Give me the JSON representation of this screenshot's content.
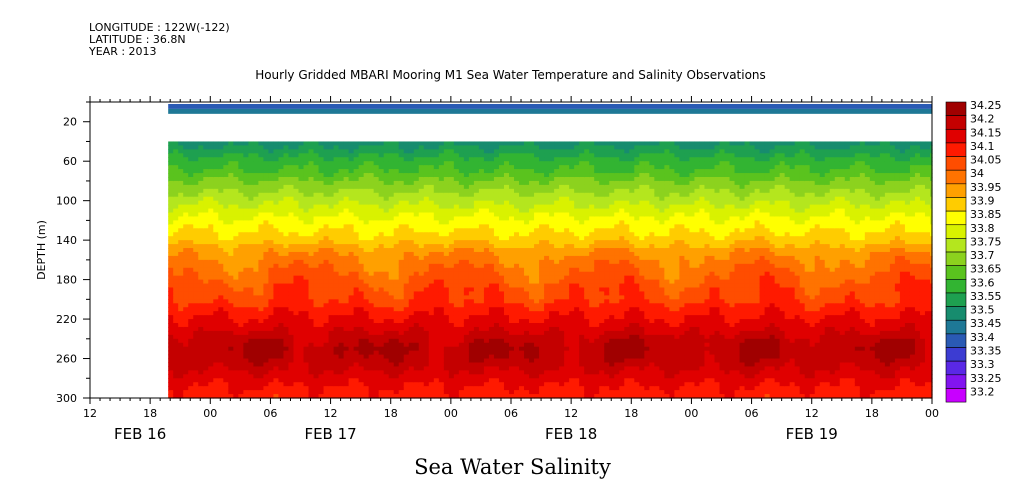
{
  "header": {
    "longitude": "LONGITUDE : 122W(-122)",
    "latitude": "LATITUDE : 36.8N",
    "year": "YEAR : 2013"
  },
  "title": "Hourly Gridded MBARI Mooring M1 Sea Water Temperature and Salinity Observations",
  "bottom_title": "Sea Water Salinity",
  "chart_data": {
    "type": "heatmap",
    "ylabel": "DEPTH (m)",
    "xlabel": "",
    "y_reversed": true,
    "ylim": [
      300,
      0
    ],
    "y_ticks": [
      20,
      60,
      100,
      140,
      180,
      220,
      260,
      300
    ],
    "x_unit": "hours since FEB 16 00:00",
    "xlim": [
      12,
      96
    ],
    "x_ticks": [
      {
        "x": 12,
        "label": "12"
      },
      {
        "x": 18,
        "label": "18"
      },
      {
        "x": 24,
        "label": "00"
      },
      {
        "x": 30,
        "label": "06"
      },
      {
        "x": 36,
        "label": "12"
      },
      {
        "x": 42,
        "label": "18"
      },
      {
        "x": 48,
        "label": "00"
      },
      {
        "x": 54,
        "label": "06"
      },
      {
        "x": 60,
        "label": "12"
      },
      {
        "x": 66,
        "label": "18"
      },
      {
        "x": 72,
        "label": "00"
      },
      {
        "x": 78,
        "label": "06"
      },
      {
        "x": 84,
        "label": "12"
      },
      {
        "x": 90,
        "label": "18"
      },
      {
        "x": 96,
        "label": "00"
      }
    ],
    "date_labels": [
      {
        "x": 17,
        "label": "FEB 16"
      },
      {
        "x": 36,
        "label": "FEB 17"
      },
      {
        "x": 60,
        "label": "FEB 18"
      },
      {
        "x": 84,
        "label": "FEB 19"
      }
    ],
    "data_start_hour": 19.8,
    "surface_band": [
      {
        "depth_from": 2,
        "depth_to": 7,
        "value": 33.4
      },
      {
        "depth_from": 7,
        "depth_to": 12,
        "value": 33.45
      }
    ],
    "profile_depths": [
      40,
      50,
      60,
      70,
      80,
      90,
      100,
      110,
      120,
      130,
      140,
      150,
      160,
      170,
      180,
      190,
      200,
      210,
      220,
      230,
      240,
      250,
      260,
      270,
      280,
      290,
      300
    ],
    "profile_values": [
      33.5,
      33.55,
      33.6,
      33.63,
      33.68,
      33.72,
      33.76,
      33.8,
      33.84,
      33.87,
      33.9,
      33.95,
      33.98,
      34.0,
      34.02,
      34.05,
      34.06,
      34.1,
      34.13,
      34.16,
      34.2,
      34.22,
      34.21,
      34.18,
      34.15,
      34.12,
      34.1
    ],
    "color_levels": [
      {
        "value": 34.25,
        "color": "#a00000"
      },
      {
        "value": 34.2,
        "color": "#c40000"
      },
      {
        "value": 34.15,
        "color": "#e00000"
      },
      {
        "value": 34.1,
        "color": "#ff1a00"
      },
      {
        "value": 34.05,
        "color": "#ff4d00"
      },
      {
        "value": 34.0,
        "color": "#ff7300"
      },
      {
        "value": 33.95,
        "color": "#ffa000"
      },
      {
        "value": 33.9,
        "color": "#ffcc00"
      },
      {
        "value": 33.85,
        "color": "#ffff00"
      },
      {
        "value": 33.8,
        "color": "#d9f200"
      },
      {
        "value": 33.75,
        "color": "#b4e61e"
      },
      {
        "value": 33.7,
        "color": "#8cd21e"
      },
      {
        "value": 33.65,
        "color": "#5ac31e"
      },
      {
        "value": 33.6,
        "color": "#32b432"
      },
      {
        "value": 33.55,
        "color": "#1ea050"
      },
      {
        "value": 33.5,
        "color": "#178c6e"
      },
      {
        "value": 33.45,
        "color": "#1e7896"
      },
      {
        "value": 33.4,
        "color": "#2a5ab4"
      },
      {
        "value": 33.35,
        "color": "#3c3cd2"
      },
      {
        "value": 33.3,
        "color": "#5a28e6"
      },
      {
        "value": 33.25,
        "color": "#8214f0"
      },
      {
        "value": 33.2,
        "color": "#c800ff"
      }
    ],
    "legend_labels": [
      "34.25",
      "34.2",
      "34.15",
      "34.1",
      "34.05",
      "34",
      "33.95",
      "33.9",
      "33.85",
      "33.8",
      "33.75",
      "33.7",
      "33.65",
      "33.6",
      "33.55",
      "33.5",
      "33.45",
      "33.4",
      "33.35",
      "33.3",
      "33.25",
      "33.2"
    ]
  }
}
